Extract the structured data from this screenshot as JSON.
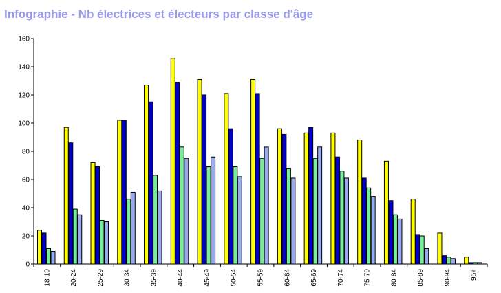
{
  "title": "Infographie - Nb électrices et électeurs par classe d'âge",
  "chart_data": {
    "type": "bar",
    "title": "Infographie - Nb électrices et électeurs par classe d'âge",
    "xlabel": "",
    "ylabel": "",
    "ylim": [
      0,
      160
    ],
    "yticks": [
      0,
      20,
      40,
      60,
      80,
      100,
      120,
      140,
      160
    ],
    "grid": false,
    "legend": "none",
    "categories": [
      "18-19",
      "20-24",
      "25-29",
      "30-34",
      "35-39",
      "40-44",
      "45-49",
      "50-54",
      "55-59",
      "60-64",
      "65-69",
      "70-74",
      "75-79",
      "80-84",
      "85-89",
      "90-94",
      "95+"
    ],
    "series": [
      {
        "color": "#ffff00",
        "values": [
          24,
          97,
          72,
          102,
          127,
          146,
          131,
          121,
          131,
          96,
          93,
          93,
          88,
          73,
          46,
          22,
          5
        ]
      },
      {
        "color": "#0000cc",
        "values": [
          22,
          86,
          69,
          102,
          115,
          129,
          120,
          96,
          121,
          92,
          97,
          76,
          61,
          45,
          21,
          6,
          1
        ]
      },
      {
        "color": "#77ee99",
        "values": [
          11,
          39,
          31,
          46,
          63,
          83,
          69,
          69,
          75,
          68,
          75,
          66,
          54,
          35,
          20,
          5,
          1
        ]
      },
      {
        "color": "#99aaee",
        "values": [
          9,
          35,
          30,
          51,
          52,
          75,
          76,
          62,
          83,
          61,
          83,
          61,
          48,
          32,
          11,
          4,
          1
        ]
      }
    ]
  }
}
